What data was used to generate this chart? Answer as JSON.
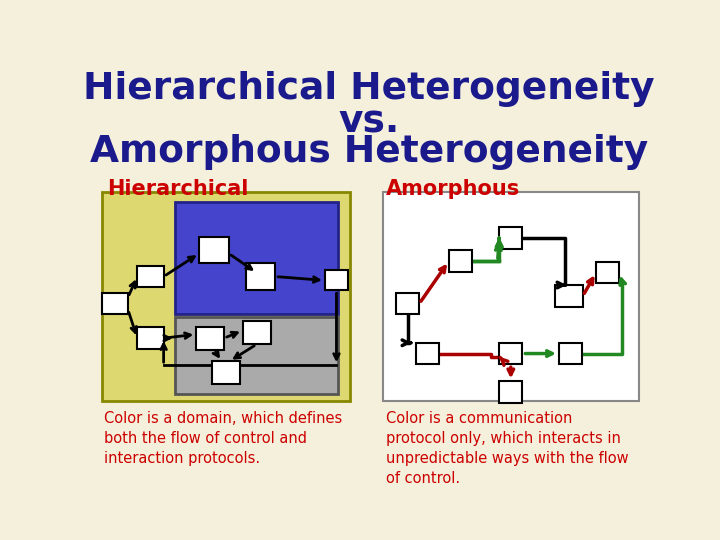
{
  "bg_color": "#f5f0dc",
  "title_line1": "Hierarchical Heterogeneity",
  "title_line2": "vs.",
  "title_line3": "Amorphous Heterogeneity",
  "title_color": "#1a1a8c",
  "left_label": "Hierarchical",
  "right_label": "Amorphous",
  "label_color": "#cc0000",
  "left_caption": "Color is a domain, which defines\nboth the flow of control and\ninteraction protocols.",
  "right_caption": "Color is a communication\nprotocol only, which interacts in\nunpredictable ways with the flow\nof control.",
  "caption_color": "#cc0000",
  "left_outer_bg": "#ddd870",
  "left_blue_bg": "#4444cc",
  "left_gray_bg": "#aaaaaa",
  "right_panel_bg": "#ffffff"
}
